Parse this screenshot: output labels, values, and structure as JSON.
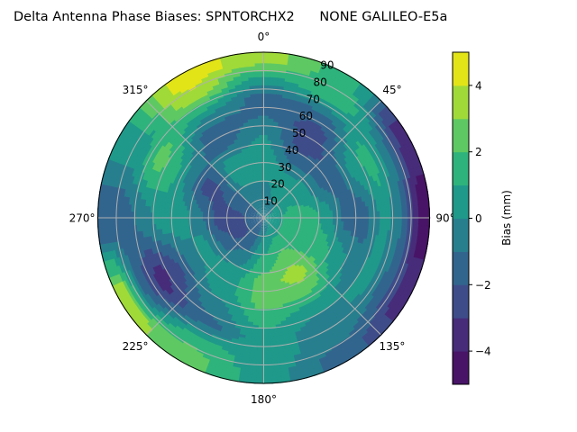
{
  "chart_data": {
    "type": "heatmap",
    "projection": "polar",
    "title": "Delta Antenna Phase Biases: SPNTORCHX2      NONE GALILEO-E5a",
    "theta_direction": "clockwise",
    "theta_zero": "top",
    "theta_tick_labels": [
      "0°",
      "45°",
      "90°",
      "135°",
      "180°",
      "225°",
      "270°",
      "315°"
    ],
    "theta_ticks": [
      0,
      45,
      90,
      135,
      180,
      225,
      270,
      315
    ],
    "r_tick_labels": [
      "10",
      "20",
      "30",
      "40",
      "50",
      "60",
      "70",
      "80",
      "90"
    ],
    "r_ticks": [
      10,
      20,
      30,
      40,
      50,
      60,
      70,
      80,
      90
    ],
    "rlim": [
      0,
      90
    ],
    "grid": true,
    "azimuths": [
      0,
      30,
      60,
      90,
      120,
      150,
      180,
      210,
      240,
      270,
      300,
      330
    ],
    "zeniths": [
      5,
      15,
      25,
      35,
      45,
      55,
      65,
      75,
      85
    ],
    "values": [
      [
        -1,
        -0.5,
        0.5,
        0.5,
        0,
        -1,
        -1.5,
        0.5,
        3.5
      ],
      [
        -0.5,
        0.5,
        0.5,
        -1.5,
        -2.5,
        -2.5,
        -1,
        2,
        1.5
      ],
      [
        0,
        1,
        0.5,
        -1,
        -1.5,
        0.5,
        1.5,
        -0.5,
        -3.5
      ],
      [
        0.5,
        1.5,
        1.5,
        0.5,
        -1.5,
        -1.5,
        0.5,
        -1,
        -4.5
      ],
      [
        0.5,
        1.5,
        1.5,
        1.5,
        0.5,
        -0.5,
        0.5,
        -1.5,
        -3.5
      ],
      [
        0,
        1.5,
        2.5,
        3.5,
        2.5,
        0.5,
        -0.5,
        -0.5,
        -1.5
      ],
      [
        -0.5,
        0.5,
        1.5,
        2.5,
        2.5,
        1.5,
        0.5,
        0.5,
        0.5
      ],
      [
        -1.5,
        -1.5,
        -0.5,
        0.5,
        0.5,
        -0.5,
        -1.5,
        1.5,
        2.5
      ],
      [
        -1.5,
        -2.5,
        -1.5,
        0.5,
        -0.5,
        -2.5,
        -3.5,
        -1.5,
        3.5
      ],
      [
        -1.5,
        -2.5,
        -2.5,
        -0.5,
        0.5,
        0.5,
        -0.5,
        -1.5,
        -2
      ],
      [
        -1,
        -1.5,
        -2,
        -2.5,
        -0.5,
        1.5,
        2.5,
        0.5,
        0.5
      ],
      [
        -1,
        -0.5,
        0.5,
        0.5,
        -1.5,
        -1.5,
        0.5,
        3.5,
        4.5
      ]
    ],
    "levels": [
      -5,
      -4,
      -3,
      -2,
      -1,
      0,
      1,
      2,
      3,
      4,
      5
    ],
    "level_colors": [
      "#481467",
      "#472c7a",
      "#3e4c8a",
      "#32658e",
      "#277f8e",
      "#1f998a",
      "#2eb37c",
      "#5ec962",
      "#a0da39",
      "#e2e418"
    ],
    "colorbar": {
      "label": "Bias (mm)",
      "ticks": [
        4,
        2,
        0,
        -2,
        -4
      ],
      "tick_labels": [
        "4",
        "2",
        "0",
        "−2",
        "−4"
      ],
      "range": [
        -5,
        5
      ]
    }
  }
}
